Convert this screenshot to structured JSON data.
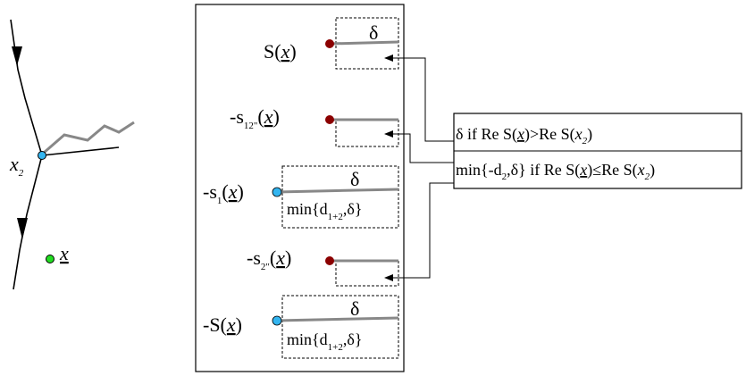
{
  "colors": {
    "ink": "#000000",
    "branch": "#888888",
    "dark_red_dot": "#8b0000",
    "light_blue_dot": "#33b5f0",
    "green_dot": "#22dd22"
  },
  "left": {
    "x2_label": "x",
    "x2_sub": "2",
    "x_label": "x"
  },
  "rows": [
    {
      "prefix": "S(",
      "var": "x",
      "suffix": ")",
      "sub": "",
      "delta": "δ",
      "min_text": "",
      "min_sub": "",
      "min_end": ""
    },
    {
      "prefix": "-s",
      "var": "x",
      "suffix": ")",
      "sub": "12\"",
      "delta": "",
      "min_text": "",
      "min_sub": "",
      "min_end": ""
    },
    {
      "prefix": "-s",
      "var": "x",
      "suffix": ")",
      "sub": "1",
      "delta": "δ",
      "min_text": "min{d",
      "min_sub": "1+2",
      "min_end": ",δ}"
    },
    {
      "prefix": "-s",
      "var": "x",
      "suffix": ")",
      "sub": "2\"",
      "delta": "",
      "min_text": "",
      "min_sub": "",
      "min_end": ""
    },
    {
      "prefix": "-S(",
      "var": "x",
      "suffix": ")",
      "sub": "",
      "delta": "δ",
      "min_text": "min{d",
      "min_sub": "1+2",
      "min_end": ",δ}"
    }
  ],
  "legend": {
    "line1": {
      "a": "δ if Re S(",
      "v": "x",
      "b": ")>Re S(",
      "c": "x",
      "sub": "2",
      "d": ")"
    },
    "line2": {
      "a": "min{-d",
      "sub1": "2",
      "b": ",δ} if Re S(",
      "v": "x",
      "c": ")≤Re S(",
      "e": "x",
      "sub2": "2",
      "d": ")"
    }
  }
}
